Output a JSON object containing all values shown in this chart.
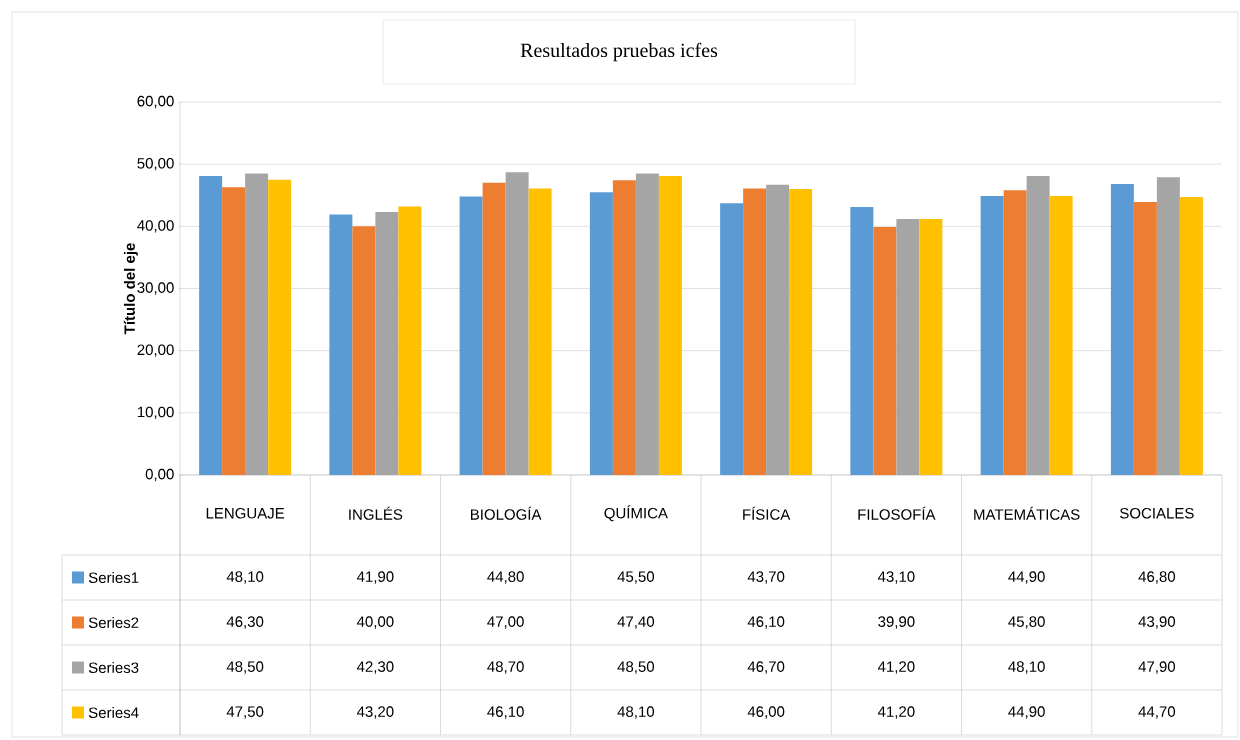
{
  "chart_data": {
    "type": "bar",
    "title": "Resultados pruebas icfes",
    "ylabel": "Título del eje",
    "categories": [
      "LENGUAJE",
      "INGLÉS",
      "BIOLOGÍA",
      "QUÍMICA",
      "FÍSICA",
      "FILOSOFÍA",
      "MATEMÁTICAS",
      "SOCIALES"
    ],
    "series": [
      {
        "name": "Series1",
        "color": "#5b9bd5",
        "values": [
          48.1,
          41.9,
          44.8,
          45.5,
          43.7,
          43.1,
          44.9,
          46.8
        ],
        "value_labels": [
          "48,10",
          "41,90",
          "44,80",
          "45,50",
          "43,70",
          "43,10",
          "44,90",
          "46,80"
        ]
      },
      {
        "name": "Series2",
        "color": "#ed7d31",
        "values": [
          46.3,
          40.0,
          47.0,
          47.4,
          46.1,
          39.9,
          45.8,
          43.9
        ],
        "value_labels": [
          "46,30",
          "40,00",
          "47,00",
          "47,40",
          "46,10",
          "39,90",
          "45,80",
          "43,90"
        ]
      },
      {
        "name": "Series3",
        "color": "#a5a5a5",
        "values": [
          48.5,
          42.3,
          48.7,
          48.5,
          46.7,
          41.2,
          48.1,
          47.9
        ],
        "value_labels": [
          "48,50",
          "42,30",
          "48,70",
          "48,50",
          "46,70",
          "41,20",
          "48,10",
          "47,90"
        ]
      },
      {
        "name": "Series4",
        "color": "#ffc000",
        "values": [
          47.5,
          43.2,
          46.1,
          48.1,
          46.0,
          41.2,
          44.9,
          44.7
        ],
        "value_labels": [
          "47,50",
          "43,20",
          "46,10",
          "48,10",
          "46,00",
          "41,20",
          "44,90",
          "44,70"
        ]
      }
    ],
    "ylim": [
      0,
      60
    ],
    "yticks": [
      {
        "value": 0,
        "label": "0,00"
      },
      {
        "value": 10,
        "label": "10,00"
      },
      {
        "value": 20,
        "label": "20,00"
      },
      {
        "value": 30,
        "label": "30,00"
      },
      {
        "value": 40,
        "label": "40,00"
      },
      {
        "value": 50,
        "label": "50,00"
      },
      {
        "value": 60,
        "label": "60,00"
      }
    ],
    "grid": "y",
    "legend": "bottom"
  }
}
